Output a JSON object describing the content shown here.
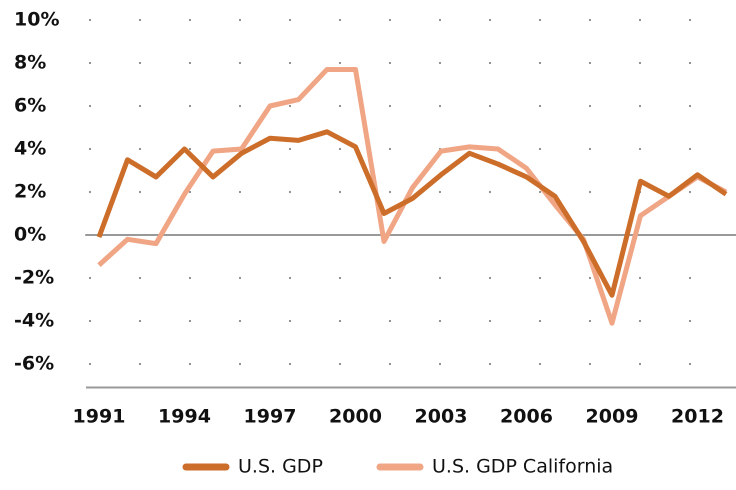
{
  "chart_data": {
    "type": "line",
    "x": [
      1991,
      1992,
      1993,
      1994,
      1995,
      1996,
      1997,
      1998,
      1999,
      2000,
      2001,
      2002,
      2003,
      2004,
      2005,
      2006,
      2007,
      2008,
      2009,
      2010,
      2011,
      2012,
      2013
    ],
    "series": [
      {
        "name": "U.S. GDP",
        "color": "#cc6d2a",
        "values": [
          -0.1,
          3.5,
          2.7,
          4.0,
          2.7,
          3.8,
          4.5,
          4.4,
          4.8,
          4.1,
          1.0,
          1.7,
          2.8,
          3.8,
          3.3,
          2.7,
          1.8,
          -0.3,
          -2.8,
          2.5,
          1.8,
          2.8,
          1.9
        ]
      },
      {
        "name": "U.S. GDP California",
        "color": "#f0a584",
        "values": [
          -1.4,
          -0.2,
          -0.4,
          1.9,
          3.9,
          4.0,
          6.0,
          6.3,
          7.7,
          7.7,
          -0.3,
          2.2,
          3.9,
          4.1,
          4.0,
          3.1,
          1.4,
          -0.2,
          -4.1,
          0.9,
          1.8,
          2.7,
          2.0
        ]
      }
    ],
    "xlim": [
      1991,
      2013
    ],
    "xticks": [
      1991,
      1994,
      1997,
      2000,
      2003,
      2006,
      2009,
      2012
    ],
    "ylim": [
      -7,
      10
    ],
    "yticks": [
      {
        "value": 10,
        "label": "10%"
      },
      {
        "value": 8,
        "label": "8%"
      },
      {
        "value": 6,
        "label": "6%"
      },
      {
        "value": 4,
        "label": "4%"
      },
      {
        "value": 2,
        "label": "2%"
      },
      {
        "value": 0,
        "label": "0%"
      },
      {
        "value": -2,
        "label": "-2%"
      },
      {
        "value": -4,
        "label": "-4%"
      },
      {
        "value": -6,
        "label": "-6%"
      }
    ],
    "grid": "dotted",
    "legend": "bottom"
  }
}
